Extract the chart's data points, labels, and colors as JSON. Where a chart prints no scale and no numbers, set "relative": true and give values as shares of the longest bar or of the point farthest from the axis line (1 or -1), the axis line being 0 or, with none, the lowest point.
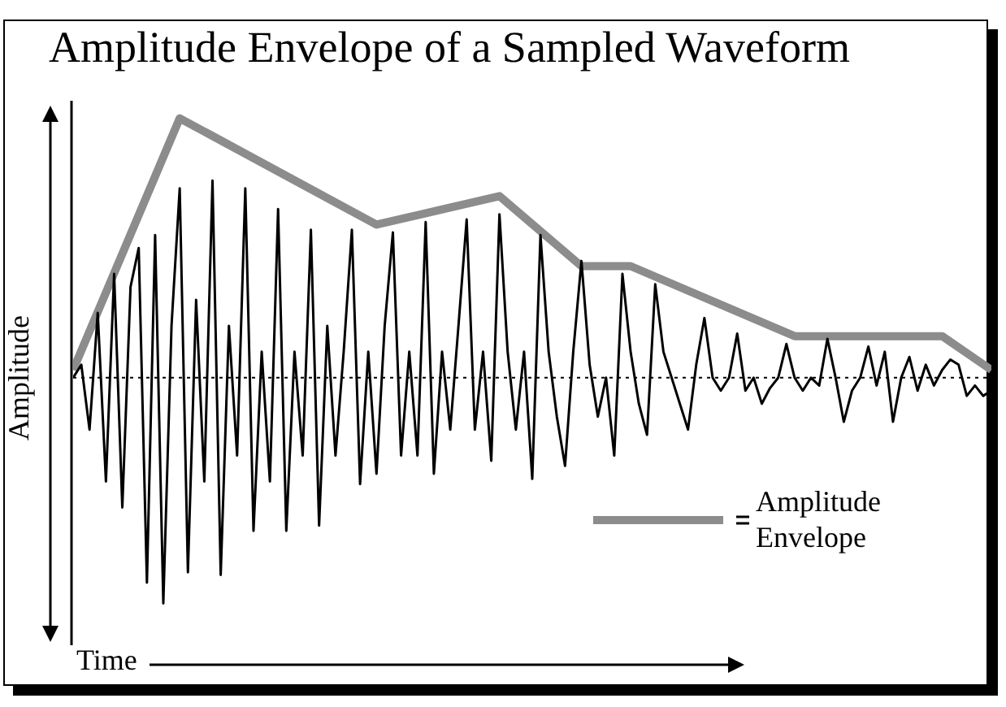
{
  "chart_data": {
    "type": "line",
    "title": "Amplitude Envelope of a Sampled Waveform",
    "xlabel": "Time",
    "ylabel": "Amplitude",
    "relative": true,
    "legend": "bottom right",
    "marker": "none",
    "ref_lines": [
      {
        "axis": "y",
        "value": 0,
        "color": "#000000",
        "line_style": "dotted"
      }
    ],
    "categories": [
      null,
      null,
      null,
      null,
      null,
      null,
      null,
      null,
      null,
      null,
      null,
      null,
      null,
      null,
      null,
      null,
      null,
      null,
      null,
      null,
      null,
      null,
      null,
      null,
      null,
      null,
      null,
      null,
      null,
      null,
      null,
      null,
      null,
      null,
      null,
      null,
      null,
      null,
      null,
      null,
      null,
      null,
      null,
      null,
      null,
      null,
      null,
      null,
      null,
      null,
      null,
      null,
      null,
      null,
      null,
      null,
      null,
      null,
      null,
      null,
      null,
      null,
      null,
      null,
      null,
      null,
      null,
      null,
      null,
      null,
      null,
      null,
      null,
      null,
      null,
      null,
      null,
      null,
      null,
      null,
      null,
      null,
      null,
      null,
      null,
      null,
      null,
      null,
      null,
      null,
      null,
      null,
      null,
      null,
      null,
      null,
      null,
      null,
      null,
      null,
      null,
      null,
      null,
      null,
      null,
      null,
      null,
      null,
      null,
      null,
      null,
      null,
      null
    ],
    "series": [
      {
        "color": "#000000",
        "values": [
          0,
          0.05,
          -0.2,
          0.25,
          -0.4,
          0.4,
          -0.5,
          0.35,
          0.5,
          -0.79,
          0.55,
          -0.87,
          0.2,
          0.73,
          -0.75,
          0.3,
          -0.4,
          0.76,
          -0.76,
          0.2,
          -0.3,
          0.73,
          -0.59,
          0.1,
          -0.4,
          0.65,
          -0.59,
          0.1,
          -0.3,
          0.57,
          -0.57,
          0.2,
          -0.3,
          0.1,
          0.57,
          -0.41,
          0.1,
          -0.37,
          0.2,
          0.56,
          -0.3,
          0.1,
          -0.3,
          0.6,
          -0.37,
          0.1,
          -0.2,
          0.2,
          0.61,
          -0.2,
          0.1,
          -0.32,
          0.63,
          0.1,
          -0.2,
          0.1,
          -0.39,
          0.55,
          0.1,
          -0.15,
          -0.34,
          0.1,
          0.45,
          0.05,
          -0.15,
          0,
          -0.3,
          0.4,
          0.1,
          -0.1,
          -0.22,
          0.36,
          0.1,
          0,
          -0.1,
          -0.2,
          0.05,
          0.23,
          0,
          -0.05,
          0,
          0.17,
          -0.05,
          0,
          -0.1,
          -0.04,
          0,
          0.13,
          0,
          -0.05,
          0,
          -0.03,
          0.15,
          0,
          -0.17,
          -0.05,
          0,
          0.12,
          -0.03,
          0.1,
          -0.17,
          0,
          0.08,
          -0.05,
          0.05,
          -0.03,
          0.03,
          0.07,
          0.05,
          -0.07,
          -0.03,
          -0.07,
          -0.05
        ]
      },
      {
        "name": "Amplitude Envelope",
        "color": "#8c8c8c",
        "values": [
          0.03,
          null,
          null,
          null,
          null,
          null,
          null,
          null,
          null,
          null,
          null,
          null,
          null,
          1,
          null,
          null,
          null,
          null,
          null,
          null,
          null,
          null,
          null,
          null,
          null,
          null,
          null,
          null,
          null,
          null,
          null,
          null,
          null,
          null,
          null,
          null,
          null,
          0.59,
          null,
          null,
          null,
          null,
          null,
          null,
          null,
          null,
          null,
          null,
          null,
          null,
          null,
          null,
          0.7,
          null,
          null,
          null,
          null,
          null,
          null,
          null,
          null,
          null,
          0.43,
          null,
          null,
          null,
          null,
          null,
          0.43,
          null,
          null,
          null,
          null,
          null,
          null,
          null,
          null,
          null,
          null,
          null,
          null,
          null,
          null,
          null,
          null,
          null,
          null,
          null,
          0.16,
          null,
          null,
          null,
          null,
          null,
          null,
          null,
          null,
          null,
          null,
          null,
          null,
          null,
          null,
          null,
          null,
          null,
          0.16,
          null,
          null,
          null,
          null,
          null,
          0.03
        ]
      }
    ]
  }
}
